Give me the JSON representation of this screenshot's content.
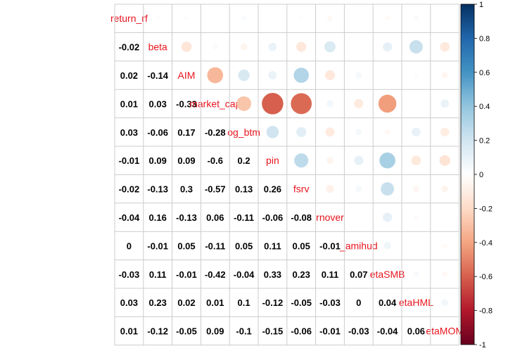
{
  "chart_data": {
    "type": "heatmap",
    "variables": [
      "return_rf",
      "beta",
      "AIM",
      "market_cap",
      "log_btm",
      "pin",
      "fsrv",
      "turnover",
      "log_amihud",
      "betaSMB",
      "betaHML",
      "betaMOM"
    ],
    "variable_labels_visible": [
      "return_rf",
      "beta",
      "AIM",
      "market_cap",
      "og_btm",
      "pin",
      "fsrv",
      "rnover",
      "_amihud",
      "etaSMB",
      "etaHML",
      "etaMOM"
    ],
    "matrix": [
      [
        1,
        -0.02,
        0.02,
        0.01,
        0.03,
        -0.01,
        -0.02,
        -0.04,
        0,
        -0.03,
        0.03,
        0.01
      ],
      [
        -0.02,
        1,
        -0.14,
        0.03,
        -0.06,
        0.09,
        -0.13,
        0.16,
        -0.01,
        0.11,
        0.23,
        -0.12
      ],
      [
        0.02,
        -0.14,
        1,
        -0.33,
        0.17,
        0.09,
        0.3,
        -0.13,
        0.05,
        -0.01,
        0.02,
        -0.05
      ],
      [
        0.01,
        0.03,
        -0.33,
        1,
        -0.28,
        -0.6,
        -0.57,
        0.06,
        -0.11,
        -0.42,
        0.01,
        0.09
      ],
      [
        0.03,
        -0.06,
        0.17,
        -0.28,
        1,
        0.2,
        0.13,
        -0.11,
        0.05,
        -0.04,
        0.1,
        -0.1
      ],
      [
        -0.01,
        0.09,
        0.09,
        -0.6,
        0.2,
        1,
        0.26,
        -0.06,
        0.11,
        0.33,
        -0.12,
        -0.15
      ],
      [
        -0.02,
        -0.13,
        0.3,
        -0.57,
        0.13,
        0.26,
        1,
        -0.08,
        0.05,
        0.23,
        -0.05,
        -0.06
      ],
      [
        -0.04,
        0.16,
        -0.13,
        0.06,
        -0.11,
        -0.06,
        -0.08,
        1,
        -0.01,
        0.11,
        -0.03,
        -0.01
      ],
      [
        0,
        -0.01,
        0.05,
        -0.11,
        0.05,
        0.11,
        0.05,
        -0.01,
        1,
        0.07,
        0,
        -0.03
      ],
      [
        -0.03,
        0.11,
        -0.01,
        -0.42,
        -0.04,
        0.33,
        0.23,
        0.11,
        0.07,
        1,
        0.04,
        -0.04
      ],
      [
        0.03,
        0.23,
        0.02,
        0.01,
        0.1,
        -0.12,
        -0.05,
        -0.03,
        0,
        0.04,
        1,
        0.06
      ],
      [
        0.01,
        -0.12,
        -0.05,
        0.09,
        -0.1,
        -0.15,
        -0.06,
        -0.01,
        -0.03,
        -0.04,
        0.06,
        1
      ]
    ],
    "lower_triangle": "numbers",
    "upper_triangle": "circles",
    "diagonal": "variable names",
    "color_range": [
      -1,
      1
    ],
    "colorbar_ticks": [
      "1",
      "0.8",
      "0.6",
      "0.4",
      "0.2",
      "0",
      "-0.2",
      "-0.4",
      "-0.6",
      "-0.8",
      "-1"
    ],
    "colors": {
      "negative": "#67001f",
      "neutral": "#ffffff",
      "positive": "#053061",
      "label": "#e8141e",
      "grid": "#cccccc"
    },
    "title": "",
    "xlabel": "",
    "ylabel": ""
  }
}
